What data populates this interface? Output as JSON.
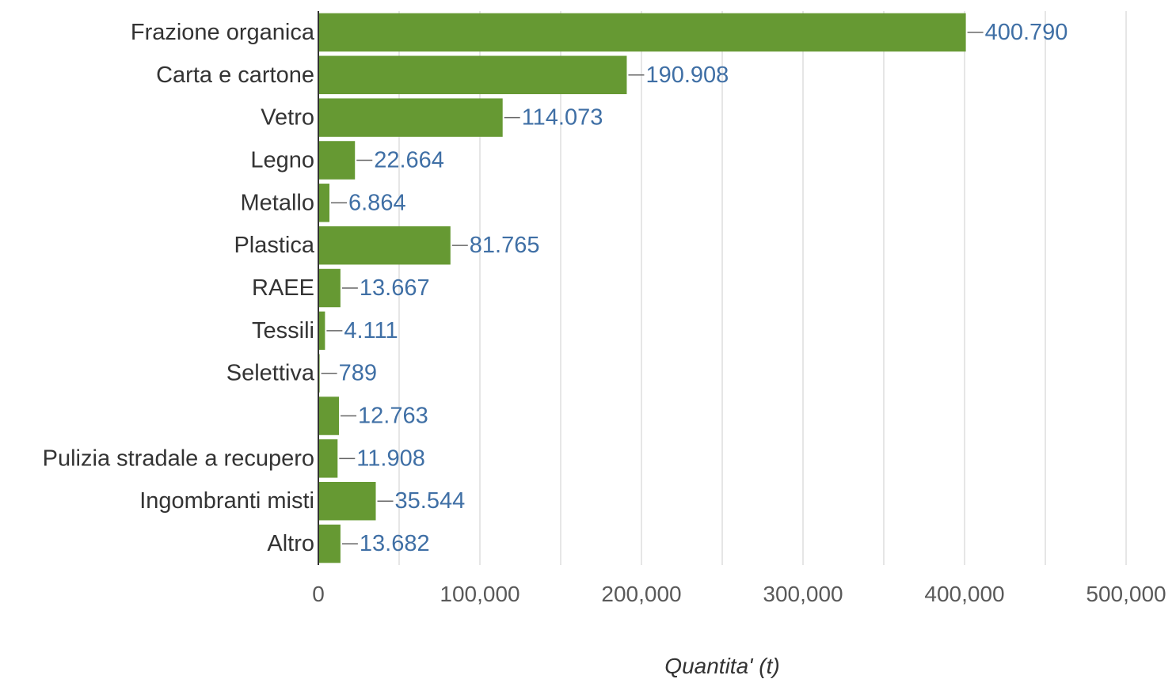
{
  "chart_data": {
    "type": "bar",
    "orientation": "horizontal",
    "categories": [
      "Frazione organica",
      "Carta e cartone",
      "Vetro",
      "Legno",
      "Metallo",
      "Plastica",
      "RAEE",
      "Tessili",
      "Selettiva",
      "",
      "Pulizia stradale a recupero",
      "Ingombranti misti",
      "Altro"
    ],
    "values": [
      400790,
      190908,
      114073,
      22664,
      6864,
      81765,
      13667,
      4111,
      789,
      12763,
      11908,
      35544,
      13682
    ],
    "value_labels": [
      "400.790",
      "190.908",
      "114.073",
      "22.664",
      "6.864",
      "81.765",
      "13.667",
      "4.111",
      "789",
      "12.763",
      "11.908",
      "35.544",
      "13.682"
    ],
    "xlabel": "Quantita' (t)",
    "xlim": [
      0,
      500000
    ],
    "xticks": [
      0,
      100000,
      200000,
      300000,
      400000,
      500000
    ],
    "xtick_labels": [
      "0",
      "100,000",
      "200,000",
      "300,000",
      "400,000",
      "500,000"
    ],
    "grid": true,
    "colors": {
      "bar": "#669933",
      "value_label": "#3f6fa5"
    }
  }
}
